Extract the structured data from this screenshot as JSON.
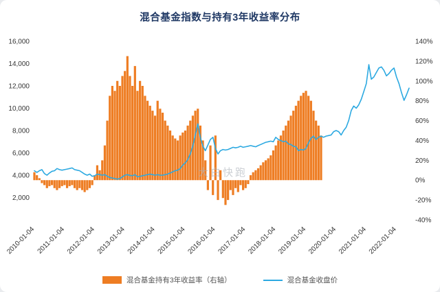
{
  "title": "混合基金指数与持有3年收益率分布",
  "watermark": "大白快跑",
  "legend": [
    {
      "label": "混合基金持有3年收益率（右轴）",
      "color": "#ee7d23"
    },
    {
      "label": "混合基金收盘价",
      "color": "#2ca9e1"
    }
  ],
  "chart_data": {
    "type": "bar+line",
    "title": "混合基金指数与持有3年收益率分布",
    "x_start": "2010-01",
    "x_freq": "monthly",
    "grid": false,
    "legend_position": "bottom",
    "x_ticks": [
      {
        "label": "2010-01-04",
        "index": 0
      },
      {
        "label": "2011-01-04",
        "index": 12
      },
      {
        "label": "2012-01-04",
        "index": 24
      },
      {
        "label": "2013-01-04",
        "index": 36
      },
      {
        "label": "2014-01-04",
        "index": 48
      },
      {
        "label": "2015-01-04",
        "index": 60
      },
      {
        "label": "2016-01-04",
        "index": 72
      },
      {
        "label": "2017-01-04",
        "index": 84
      },
      {
        "label": "2018-01-04",
        "index": 96
      },
      {
        "label": "2019-01-04",
        "index": 108
      },
      {
        "label": "2020-01-04",
        "index": 120
      },
      {
        "label": "2021-01-04",
        "index": 132
      },
      {
        "label": "2022-01-04",
        "index": 144
      }
    ],
    "y_left": {
      "min": 0,
      "max": 16000,
      "ticks": [
        2000,
        4000,
        6000,
        8000,
        10000,
        12000,
        14000,
        16000
      ]
    },
    "y_right": {
      "min": -40,
      "max": 140,
      "unit": "%",
      "ticks": [
        -40,
        -20,
        0,
        20,
        40,
        60,
        80,
        100,
        120,
        140
      ]
    },
    "series": [
      {
        "name": "混合基金持有3年收益率（右轴）",
        "type": "bar",
        "axis": "right",
        "unit": "%",
        "color": "#ee7d23",
        "values": [
          8,
          5,
          2,
          -3,
          -5,
          -8,
          -6,
          -5,
          -8,
          -10,
          -8,
          -6,
          -5,
          -8,
          -6,
          -5,
          -8,
          -10,
          -8,
          -10,
          -12,
          -10,
          -8,
          -5,
          5,
          15,
          10,
          20,
          35,
          60,
          85,
          95,
          90,
          100,
          95,
          105,
          110,
          125,
          105,
          95,
          115,
          90,
          100,
          95,
          85,
          80,
          75,
          70,
          65,
          80,
          72,
          68,
          60,
          55,
          50,
          45,
          42,
          40,
          45,
          48,
          50,
          55,
          60,
          65,
          70,
          72,
          55,
          40,
          20,
          -10,
          35,
          -15,
          45,
          -20,
          10,
          -18,
          -25,
          -20,
          -10,
          -15,
          -8,
          -12,
          -5,
          -10,
          -8,
          -4,
          5,
          8,
          10,
          12,
          15,
          18,
          20,
          22,
          25,
          30,
          35,
          40,
          45,
          50,
          55,
          60,
          65,
          70,
          75,
          80,
          85,
          88,
          90,
          85,
          80,
          70,
          60,
          55,
          45
        ]
      },
      {
        "name": "混合基金收盘价",
        "type": "line",
        "axis": "left",
        "color": "#2ca9e1",
        "values": [
          4400,
          4250,
          4400,
          4500,
          4150,
          4000,
          4200,
          4350,
          4400,
          4600,
          4500,
          4450,
          4500,
          4550,
          4600,
          4650,
          4500,
          4450,
          4400,
          4250,
          4100,
          4000,
          4100,
          3900,
          3950,
          4100,
          4050,
          4000,
          4050,
          3900,
          3800,
          3750,
          3700,
          3650,
          3700,
          3850,
          4000,
          4050,
          3980,
          3950,
          4050,
          3850,
          3900,
          3950,
          4000,
          4050,
          4100,
          4050,
          4000,
          4050,
          4000,
          4000,
          4050,
          4100,
          4200,
          4300,
          4400,
          4450,
          4600,
          4900,
          5100,
          5400,
          5900,
          6600,
          7600,
          8600,
          7400,
          6600,
          6200,
          6700,
          7200,
          7400,
          6400,
          5900,
          6200,
          6300,
          6250,
          6300,
          6400,
          6500,
          6450,
          6500,
          6600,
          6500,
          6550,
          6600,
          6650,
          6600,
          6550,
          6650,
          6750,
          6850,
          6950,
          7000,
          7050,
          7000,
          7400,
          7200,
          7100,
          7000,
          7050,
          6800,
          6750,
          6600,
          6550,
          6200,
          6300,
          6250,
          6400,
          6900,
          7300,
          7500,
          7200,
          7400,
          7500,
          7400,
          7500,
          7550,
          7600,
          7900,
          8000,
          7900,
          7600,
          8000,
          8300,
          8900,
          9800,
          10200,
          10000,
          10300,
          10800,
          11500,
          12200,
          13900,
          12600,
          12800,
          13200,
          13600,
          13700,
          13400,
          12900,
          13100,
          13400,
          13600,
          12800,
          12200,
          11400,
          10700,
          11200,
          11800
        ]
      }
    ]
  }
}
